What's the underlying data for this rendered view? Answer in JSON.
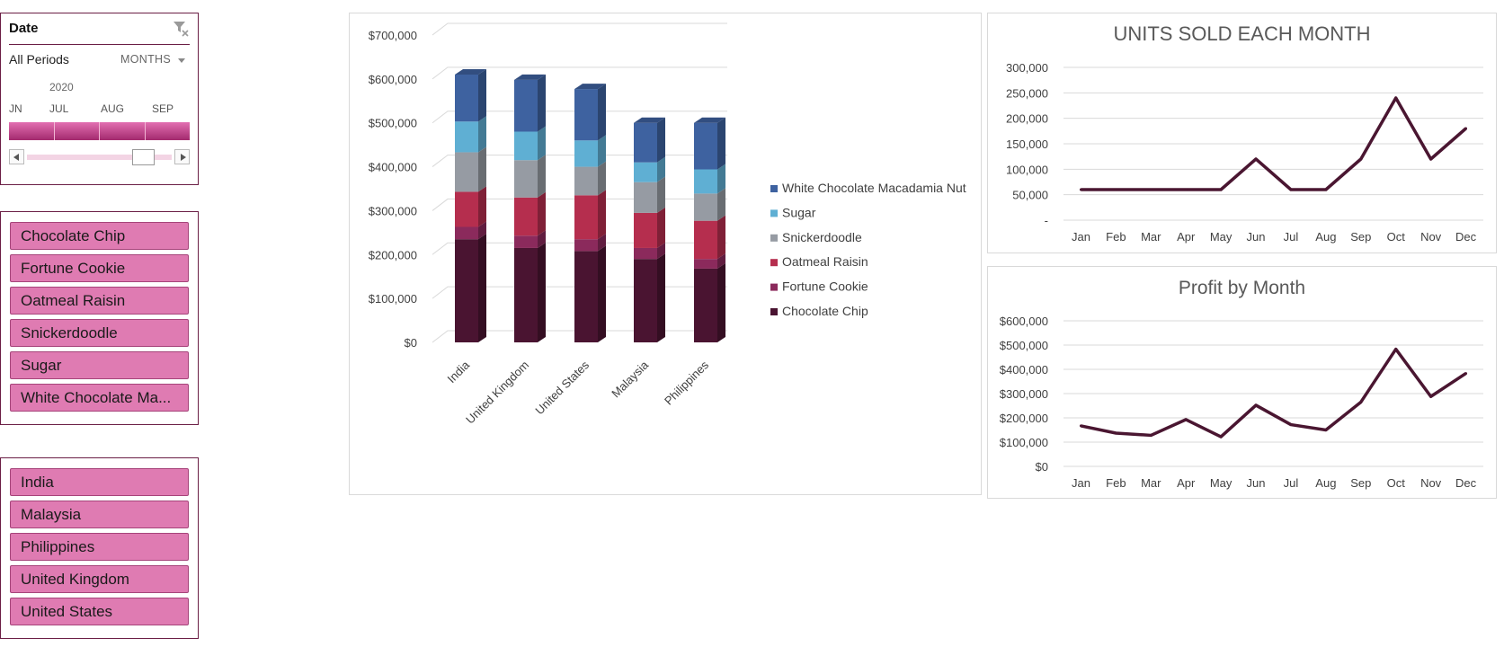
{
  "timeline": {
    "header": "Date",
    "period_label": "All Periods",
    "level_label": "MONTHS",
    "year": "2020",
    "months": [
      "JN",
      "JUL",
      "AUG",
      "SEP"
    ]
  },
  "product_slicer": {
    "items": [
      {
        "label": "Chocolate Chip"
      },
      {
        "label": "Fortune Cookie"
      },
      {
        "label": "Oatmeal Raisin"
      },
      {
        "label": "Snickerdoodle"
      },
      {
        "label": "Sugar"
      },
      {
        "label": "White Chocolate Ma..."
      }
    ]
  },
  "country_slicer": {
    "items": [
      {
        "label": "India"
      },
      {
        "label": "Malaysia"
      },
      {
        "label": "Philippines"
      },
      {
        "label": "United Kingdom"
      },
      {
        "label": "United States"
      }
    ]
  },
  "colors": {
    "accent": "#6b1e45",
    "slicer_item": "#df7bb2",
    "line": "#4a1631"
  },
  "chart_data": [
    {
      "type": "bar",
      "stacked": true,
      "three_d": true,
      "categories": [
        "India",
        "United Kingdom",
        "United States",
        "Malaysia",
        "Philippines"
      ],
      "series": [
        {
          "name": "Chocolate Chip",
          "color": "#4a1431",
          "values": [
            235000,
            215000,
            208000,
            190000,
            168000
          ]
        },
        {
          "name": "Fortune Cookie",
          "color": "#8b2a5c",
          "values": [
            28000,
            28000,
            27000,
            25000,
            22000
          ]
        },
        {
          "name": "Oatmeal Raisin",
          "color": "#b52e4e",
          "values": [
            80000,
            87000,
            100000,
            80000,
            87000
          ]
        },
        {
          "name": "Snickerdoodle",
          "color": "#969ba3",
          "values": [
            90000,
            85000,
            65000,
            70000,
            62000
          ]
        },
        {
          "name": "Sugar",
          "color": "#5fafd3",
          "values": [
            70000,
            65000,
            60000,
            45000,
            55000
          ]
        },
        {
          "name": "White Chocolate Macadamia Nut",
          "color": "#3e62a0",
          "values": [
            107000,
            118000,
            117000,
            90000,
            106000
          ]
        }
      ],
      "yticks": [
        "$0",
        "$100,000",
        "$200,000",
        "$300,000",
        "$400,000",
        "$500,000",
        "$600,000",
        "$700,000"
      ],
      "ylim": [
        0,
        700000
      ],
      "grid": true,
      "legend_position": "right"
    },
    {
      "type": "line",
      "title": "UNITS SOLD EACH MONTH",
      "categories": [
        "Jan",
        "Feb",
        "Mar",
        "Apr",
        "May",
        "Jun",
        "Jul",
        "Aug",
        "Sep",
        "Oct",
        "Nov",
        "Dec"
      ],
      "series": [
        {
          "color": "#4a1631",
          "values": [
            60000,
            60000,
            60000,
            60000,
            60000,
            120000,
            60000,
            60000,
            120000,
            240000,
            120000,
            180000
          ]
        }
      ],
      "yticks": [
        "-",
        "50,000",
        "100,000",
        "150,000",
        "200,000",
        "250,000",
        "300,000"
      ],
      "ylim": [
        0,
        300000
      ],
      "grid": true
    },
    {
      "type": "line",
      "title": "Profit by Month",
      "categories": [
        "Jan",
        "Feb",
        "Mar",
        "Apr",
        "May",
        "Jun",
        "Jul",
        "Aug",
        "Sep",
        "Oct",
        "Nov",
        "Dec"
      ],
      "series": [
        {
          "color": "#4a1631",
          "values": [
            167000,
            137000,
            128000,
            193000,
            122000,
            252000,
            172000,
            150000,
            265000,
            483000,
            288000,
            383000
          ]
        }
      ],
      "yticks": [
        "$0",
        "$100,000",
        "$200,000",
        "$300,000",
        "$400,000",
        "$500,000",
        "$600,000"
      ],
      "ylim": [
        0,
        600000
      ],
      "grid": true
    }
  ]
}
